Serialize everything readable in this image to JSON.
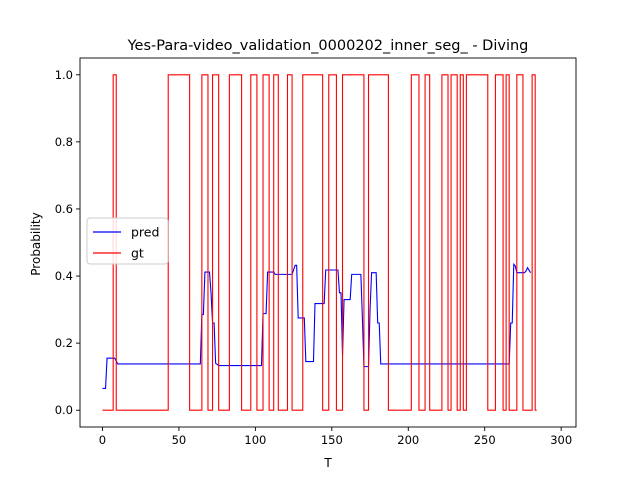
{
  "chart_data": {
    "type": "line",
    "title": "Yes-Para-video_validation_0000202_inner_seg_ - Diving",
    "xlabel": "T",
    "ylabel": "Probability",
    "xlim": [
      -14.7,
      309.7
    ],
    "ylim": [
      -0.05,
      1.05
    ],
    "xticks": [
      0,
      50,
      100,
      150,
      200,
      250,
      300
    ],
    "yticks": [
      0.0,
      0.2,
      0.4,
      0.6,
      0.8,
      1.0
    ],
    "ytick_labels": [
      "0.0",
      "0.2",
      "0.4",
      "0.6",
      "0.8",
      "1.0"
    ],
    "legend_position": "center-left",
    "grid": false,
    "series": [
      {
        "name": "pred",
        "color": "#0000ff",
        "points": [
          [
            0,
            0.065
          ],
          [
            2,
            0.065
          ],
          [
            3,
            0.155
          ],
          [
            8,
            0.155
          ],
          [
            10,
            0.138
          ],
          [
            64,
            0.138
          ],
          [
            65,
            0.285
          ],
          [
            66,
            0.285
          ],
          [
            67,
            0.412
          ],
          [
            70,
            0.412
          ],
          [
            71,
            0.35
          ],
          [
            72,
            0.26
          ],
          [
            73,
            0.26
          ],
          [
            74,
            0.14
          ],
          [
            76,
            0.133
          ],
          [
            104,
            0.133
          ],
          [
            105,
            0.288
          ],
          [
            107,
            0.288
          ],
          [
            108,
            0.412
          ],
          [
            112,
            0.412
          ],
          [
            113,
            0.405
          ],
          [
            124,
            0.405
          ],
          [
            126,
            0.432
          ],
          [
            127,
            0.432
          ],
          [
            128,
            0.275
          ],
          [
            132,
            0.275
          ],
          [
            133,
            0.145
          ],
          [
            138,
            0.145
          ],
          [
            139,
            0.318
          ],
          [
            145,
            0.318
          ],
          [
            146,
            0.418
          ],
          [
            154,
            0.418
          ],
          [
            155,
            0.35
          ],
          [
            156,
            0.35
          ],
          [
            157,
            0.163
          ],
          [
            158,
            0.33
          ],
          [
            162,
            0.33
          ],
          [
            163,
            0.405
          ],
          [
            169,
            0.405
          ],
          [
            170,
            0.275
          ],
          [
            171,
            0.13
          ],
          [
            174,
            0.13
          ],
          [
            175,
            0.3
          ],
          [
            176,
            0.41
          ],
          [
            179,
            0.41
          ],
          [
            180,
            0.26
          ],
          [
            181,
            0.26
          ],
          [
            182,
            0.138
          ],
          [
            266,
            0.138
          ],
          [
            267,
            0.26
          ],
          [
            268,
            0.26
          ],
          [
            269,
            0.435
          ],
          [
            270,
            0.43
          ],
          [
            271,
            0.41
          ],
          [
            276,
            0.41
          ],
          [
            277,
            0.415
          ],
          [
            278,
            0.425
          ],
          [
            280,
            0.41
          ]
        ]
      },
      {
        "name": "gt",
        "color": "#ff0000",
        "steps": [
          [
            0,
            0
          ],
          [
            7,
            1
          ],
          [
            9,
            0
          ],
          [
            43,
            1
          ],
          [
            57,
            0
          ],
          [
            65,
            1
          ],
          [
            69,
            0
          ],
          [
            72,
            1
          ],
          [
            76,
            0
          ],
          [
            83,
            1
          ],
          [
            91,
            0
          ],
          [
            97,
            1
          ],
          [
            101,
            0
          ],
          [
            105,
            1
          ],
          [
            109,
            0
          ],
          [
            112,
            1
          ],
          [
            115,
            0
          ],
          [
            121,
            1
          ],
          [
            124,
            0
          ],
          [
            131,
            1
          ],
          [
            144,
            0
          ],
          [
            148,
            1
          ],
          [
            153,
            0
          ],
          [
            157,
            1
          ],
          [
            171,
            0
          ],
          [
            174,
            1
          ],
          [
            187,
            0
          ],
          [
            202,
            1
          ],
          [
            207,
            0
          ],
          [
            211,
            1
          ],
          [
            214,
            0
          ],
          [
            222,
            1
          ],
          [
            226,
            0
          ],
          [
            228,
            1
          ],
          [
            232,
            0
          ],
          [
            234,
            1
          ],
          [
            236,
            0
          ],
          [
            238,
            1
          ],
          [
            252,
            0
          ],
          [
            257,
            1
          ],
          [
            262,
            0
          ],
          [
            264,
            1
          ],
          [
            266,
            0
          ],
          [
            271,
            1
          ],
          [
            275,
            0
          ],
          [
            281,
            1
          ],
          [
            283,
            0
          ]
        ],
        "x_end": 284
      }
    ]
  }
}
